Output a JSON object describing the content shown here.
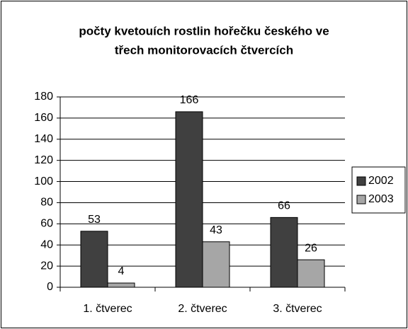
{
  "chart_data": {
    "type": "bar",
    "title": [
      "počty kvetouích rostlin hořečku českého ve",
      "třech monitorovacích čtvercích"
    ],
    "categories": [
      "1. čtverec",
      "2. čtverec",
      "3. čtverec"
    ],
    "series": [
      {
        "name": "2002",
        "color": "#404040",
        "values": [
          53,
          166,
          66
        ]
      },
      {
        "name": "2003",
        "color": "#a6a6a6",
        "values": [
          4,
          43,
          26
        ]
      }
    ],
    "ylim": [
      0,
      180
    ],
    "yticks": [
      0,
      20,
      40,
      60,
      80,
      100,
      120,
      140,
      160,
      180
    ],
    "grid": true,
    "legend": "right"
  }
}
